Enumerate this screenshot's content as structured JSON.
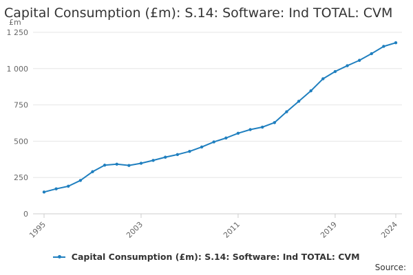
{
  "chart_data": {
    "type": "line",
    "title": "Capital Consumption (£m): S.14: Software: Ind TOTAL: CVM",
    "ylabel": "£m",
    "xlabel": "",
    "ylim": [
      0,
      1250
    ],
    "yticks": [
      0,
      250,
      500,
      750,
      1000,
      1250
    ],
    "ytick_labels": [
      "0",
      "250",
      "500",
      "750",
      "1 000",
      "1 250"
    ],
    "xticks": [
      1995,
      2003,
      2011,
      2019,
      2024
    ],
    "xtick_labels": [
      "1995",
      "2003",
      "2011",
      "2019",
      "2024"
    ],
    "xlim": [
      1995,
      2024
    ],
    "grid": true,
    "legend_position": "bottom",
    "series": [
      {
        "name": "Capital Consumption (£m): S.14: Software: Ind TOTAL: CVM",
        "color": "#1f7fbf",
        "x": [
          1995,
          1996,
          1997,
          1998,
          1999,
          2000,
          2001,
          2002,
          2003,
          2004,
          2005,
          2006,
          2007,
          2008,
          2009,
          2010,
          2011,
          2012,
          2013,
          2014,
          2015,
          2016,
          2017,
          2018,
          2019,
          2020,
          2021,
          2022,
          2023,
          2024
        ],
        "values": [
          150,
          172,
          190,
          230,
          290,
          335,
          342,
          333,
          348,
          368,
          390,
          408,
          430,
          460,
          495,
          522,
          555,
          580,
          597,
          628,
          703,
          775,
          847,
          930,
          980,
          1020,
          1057,
          1103,
          1153,
          1178
        ]
      }
    ]
  },
  "legend_label": "Capital Consumption (£m): S.14: Software: Ind TOTAL: CVM",
  "source_label": "Source:"
}
